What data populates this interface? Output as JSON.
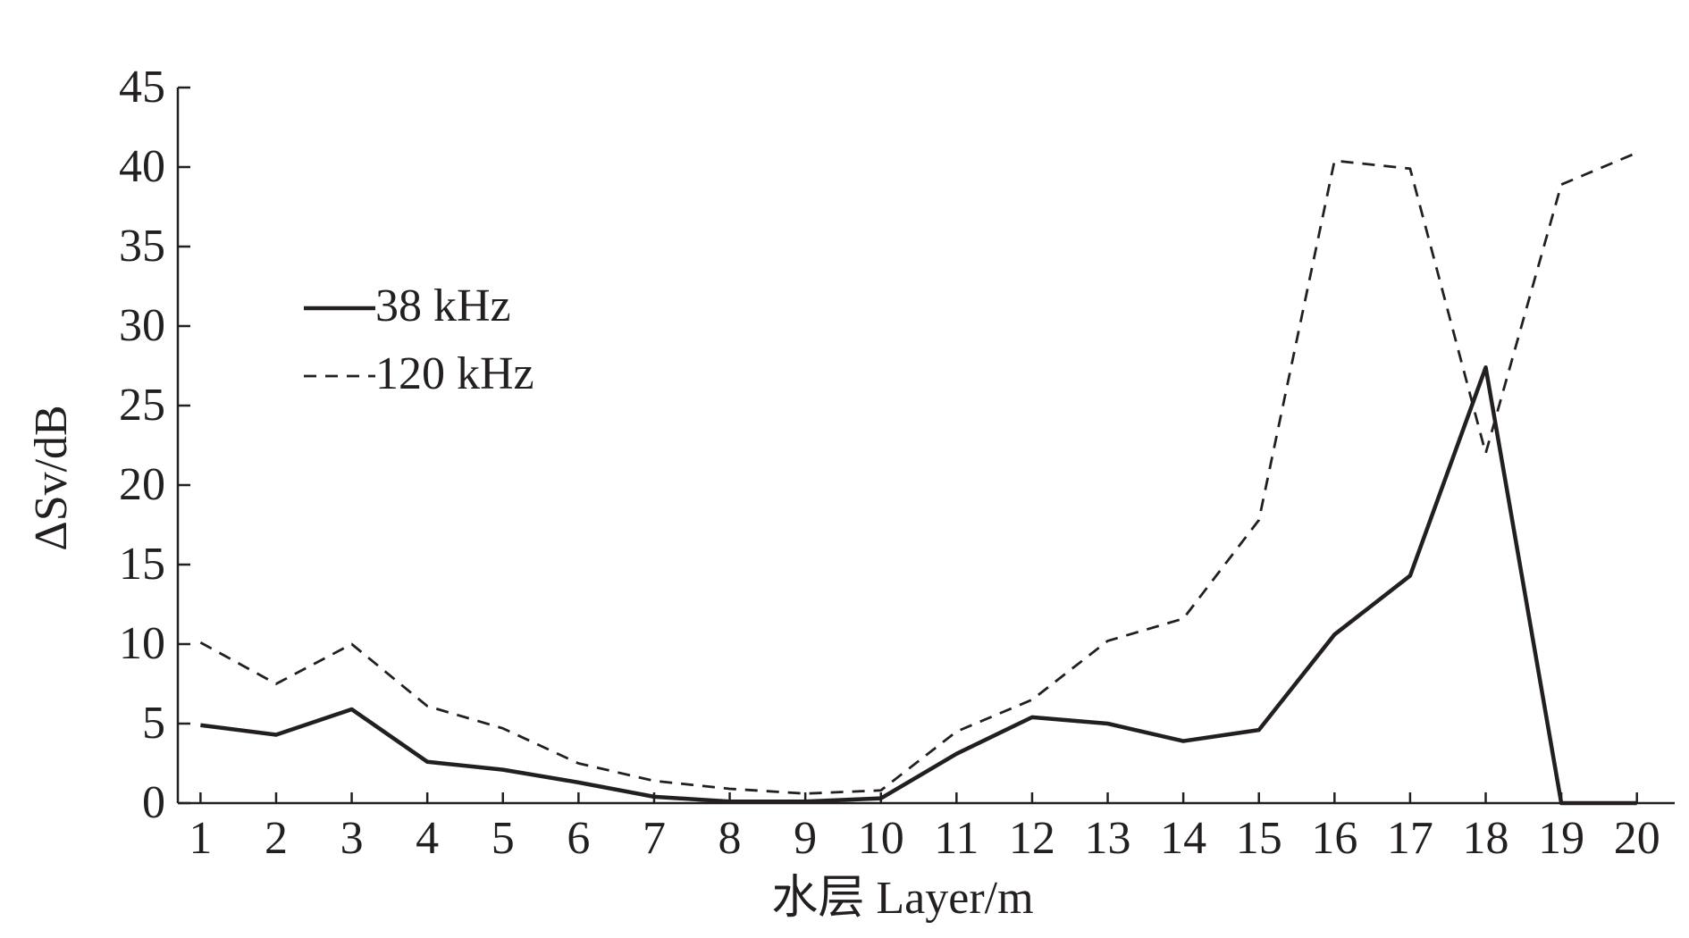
{
  "chart_data": {
    "type": "line",
    "xlabel": "水层 Layer/m",
    "ylabel": "ΔSv/dB",
    "x": [
      1,
      2,
      3,
      4,
      5,
      6,
      7,
      8,
      9,
      10,
      11,
      12,
      13,
      14,
      15,
      16,
      17,
      18,
      19,
      20
    ],
    "series": [
      {
        "name": "38 kHz",
        "color": "#231f20",
        "dash": "solid",
        "values": [
          4.9,
          4.3,
          5.9,
          2.6,
          2.1,
          1.3,
          0.4,
          0.1,
          0.1,
          0.3,
          3.1,
          5.4,
          5.0,
          3.9,
          4.6,
          10.6,
          14.3,
          27.4,
          0,
          0
        ]
      },
      {
        "name": "120 kHz",
        "color": "#231f20",
        "dash": "dashed",
        "values": [
          10.1,
          7.5,
          10.0,
          6.1,
          4.7,
          2.5,
          1.4,
          0.9,
          0.6,
          0.8,
          4.5,
          6.5,
          10.2,
          11.6,
          17.8,
          40.4,
          39.9,
          22.0,
          38.9,
          40.9
        ]
      }
    ],
    "xlim": [
      0.7,
      20.5
    ],
    "xticks": [
      1,
      2,
      3,
      4,
      5,
      6,
      7,
      8,
      9,
      10,
      11,
      12,
      13,
      14,
      15,
      16,
      17,
      18,
      19,
      20
    ],
    "ylim": [
      0,
      45
    ],
    "yticks": [
      0,
      5,
      10,
      15,
      20,
      25,
      30,
      35,
      40,
      45
    ],
    "grid": false,
    "legend": "upper left"
  }
}
